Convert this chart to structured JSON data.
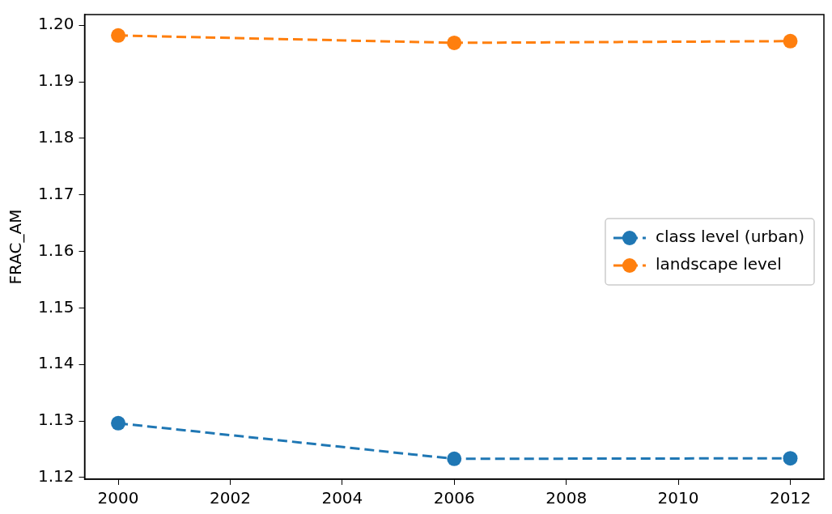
{
  "chart_data": {
    "type": "line",
    "ylabel": "FRAC_AM",
    "x": [
      2000,
      2006,
      2012
    ],
    "series": [
      {
        "name": "class level (urban)",
        "color": "#1f77b4",
        "values": [
          1.1296,
          1.1233,
          1.1234
        ]
      },
      {
        "name": "landscape level",
        "color": "#ff7f0e",
        "values": [
          1.1982,
          1.1969,
          1.1972
        ]
      }
    ],
    "xlim": [
      1999.4,
      2012.6
    ],
    "xticks": [
      2000,
      2002,
      2004,
      2006,
      2008,
      2010,
      2012
    ],
    "ylim": [
      1.1197,
      1.2019
    ],
    "yticks": [
      1.12,
      1.13,
      1.14,
      1.15,
      1.16,
      1.17,
      1.18,
      1.19,
      {
        "value": 1.2,
        "label": "1.20"
      }
    ],
    "grid": false,
    "legend": "right",
    "marker": "circle",
    "line_style": "dashed"
  }
}
